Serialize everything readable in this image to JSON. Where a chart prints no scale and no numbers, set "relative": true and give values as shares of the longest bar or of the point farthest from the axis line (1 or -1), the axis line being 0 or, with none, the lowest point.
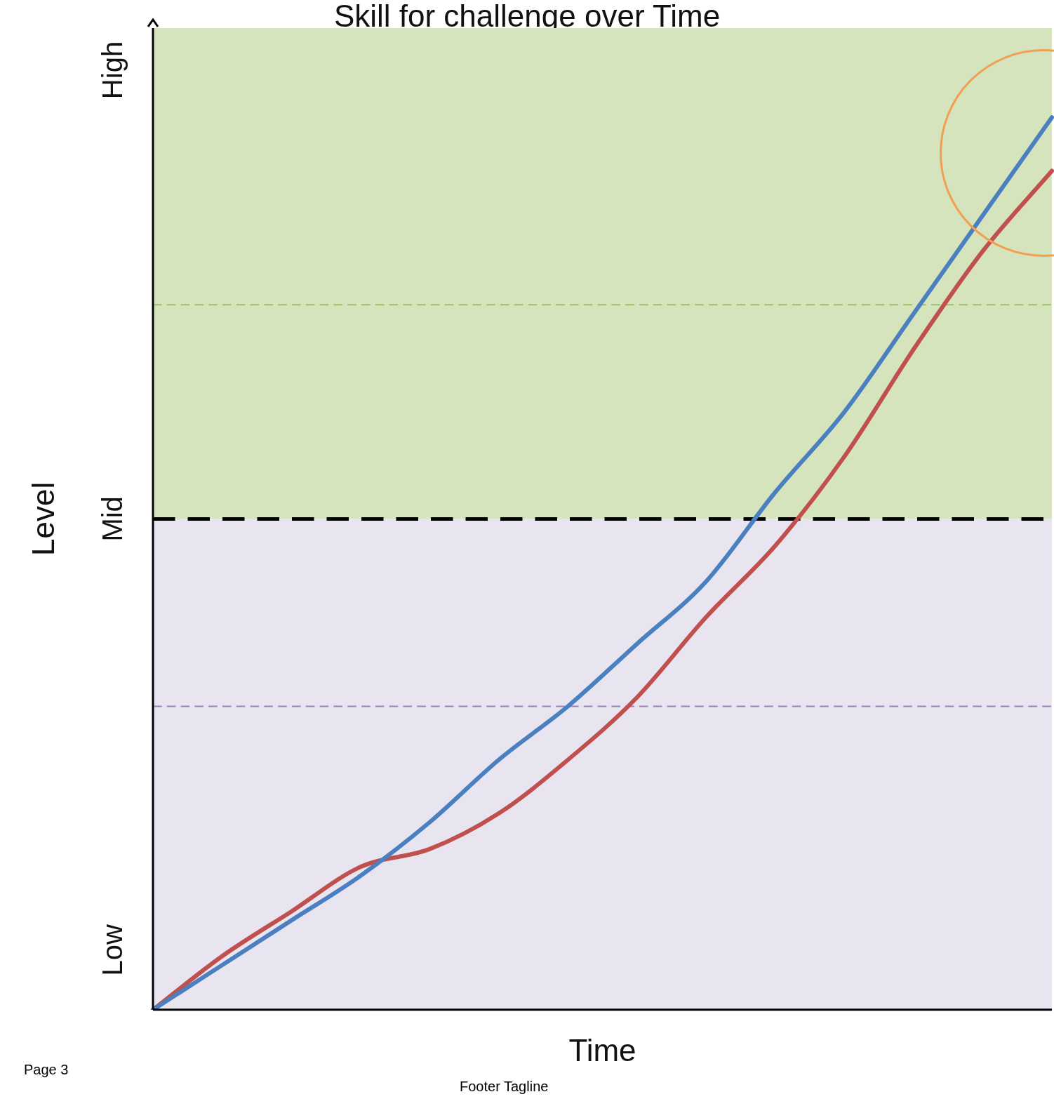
{
  "chart_data": {
    "type": "line",
    "title": "Skill for challenge over Time",
    "xlabel": "Time",
    "ylabel": "Level",
    "relative": true,
    "categories": [
      null,
      null,
      null,
      null,
      null,
      null,
      null,
      null,
      null,
      null,
      null,
      null,
      null,
      null
    ],
    "series": [
      {
        "color": "#4a7fc0",
        "values": [
          0,
          0.05,
          0.1,
          0.15,
          0.21,
          0.28,
          0.34,
          0.41,
          0.48,
          0.58,
          0.67,
          0.78,
          0.89,
          1
        ]
      },
      {
        "color": "#c0504d",
        "values": [
          0,
          0.06,
          0.11,
          0.16,
          0.18,
          0.22,
          0.28,
          0.35,
          0.44,
          0.52,
          0.62,
          0.74,
          0.85,
          0.94
        ]
      }
    ],
    "grid": false,
    "legend": false,
    "marker": "none",
    "line_style": "solid",
    "bands": [
      {
        "axis": "y",
        "from": 0.55,
        "to": 1.1,
        "color": "#d6e4bd"
      },
      {
        "axis": "y",
        "from": 0,
        "to": 0.55,
        "color": "#e8e4f0"
      }
    ],
    "ref_lines": [
      {
        "axis": "y",
        "value": 0.79,
        "color": "#9bc16a",
        "line_style": "dashed"
      },
      {
        "axis": "y",
        "value": 0.55,
        "color": "#000000",
        "line_style": "dashed",
        "label": "Mid"
      },
      {
        "axis": "y",
        "value": 0.34,
        "color": "#9a82b4",
        "line_style": "dashed"
      }
    ],
    "annotations": [
      "Low",
      "High",
      "Page 3",
      "Footer Tagline"
    ]
  }
}
